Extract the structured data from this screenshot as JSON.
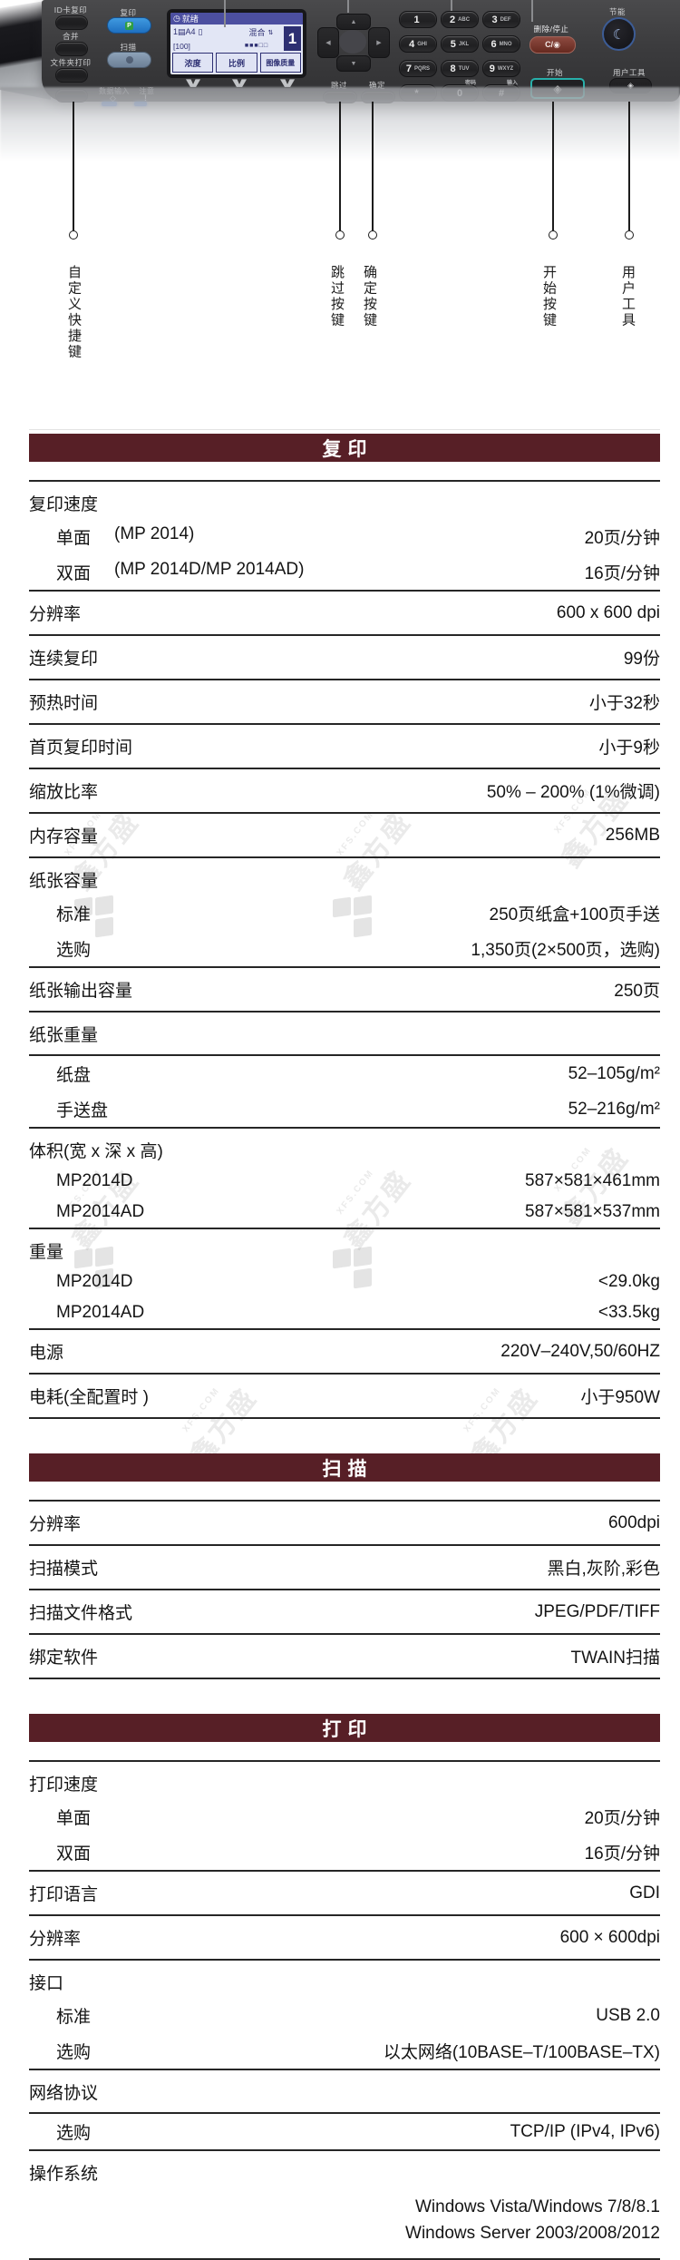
{
  "colors": {
    "section_bar": "#571f26",
    "copy_button_blue": "#1e6fc0",
    "start_teal": "#27b0aa",
    "clear_red": "#66291f"
  },
  "panel": {
    "shortcut_buttons": [
      "ID卡复印",
      "合并",
      "文件夹打印"
    ],
    "copy_label": "复印",
    "copy_key_icon": "P",
    "scan_label": "扫描",
    "data_in_label": "数据输入",
    "data_in_icon": "◇",
    "caution_label": "注意",
    "caution_icon": "!",
    "lcd": {
      "status_icon": "◷",
      "status": "就绪",
      "paper": "1▤A4",
      "paper_icon": "▯",
      "mode": "混合",
      "mode_icon": "⇅",
      "ratio": "[100]",
      "gauge": "■■■□□",
      "count": "1",
      "softkeys": [
        "浓度",
        "比例",
        "图像质量"
      ]
    },
    "skip_label": "跳过",
    "ok_label": "确定",
    "keypad": [
      {
        "key": "1",
        "sub": ""
      },
      {
        "key": "2",
        "sub": "ABC"
      },
      {
        "key": "3",
        "sub": "DEF"
      },
      {
        "key": "4",
        "sub": "GHI"
      },
      {
        "key": "5",
        "sub": "JKL"
      },
      {
        "key": "6",
        "sub": "MNO"
      },
      {
        "key": "7",
        "sub": "PQRS"
      },
      {
        "key": "8",
        "sub": "TUV"
      },
      {
        "key": "9",
        "sub": "WXYZ"
      },
      {
        "key": "*",
        "sub": ""
      },
      {
        "key": "0",
        "sub": "密码"
      },
      {
        "key": "#",
        "sub": "输入"
      }
    ],
    "clear_stop_label": "删除/停止",
    "clear_stop_key": "C/◉",
    "start_label": "开始",
    "start_icon": "◈",
    "energy_label": "节能",
    "energy_icon": "☾",
    "user_tools_label": "用户工具",
    "user_tools_icon": "◈"
  },
  "callouts": [
    "自定义快捷键",
    "跳过按键",
    "确定按键",
    "开始按键",
    "用户工具"
  ],
  "sections": [
    {
      "title": "复印",
      "rows": [
        {
          "label": "复印速度",
          "group": true
        },
        {
          "label": "单面",
          "note": "(MP 2014)",
          "value": "20页/分钟",
          "indent": true
        },
        {
          "label": "双面",
          "note": "(MP 2014D/MP 2014AD)",
          "value": "16页/分钟",
          "indent": true,
          "rule": true
        },
        {
          "label": "分辨率",
          "value": "600 x 600 dpi",
          "rule": true
        },
        {
          "label": "连续复印",
          "value": "99份",
          "rule": true
        },
        {
          "label": "预热时间",
          "value": "小于32秒",
          "rule": true
        },
        {
          "label": "首页复印时间",
          "value": "小于9秒",
          "rule": true
        },
        {
          "label": "缩放比率",
          "value": "50% – 200% (1%微调)",
          "rule": true
        },
        {
          "label": "内存容量",
          "value": "256MB",
          "rule": true
        },
        {
          "label": "纸张容量",
          "group": true
        },
        {
          "label": "标准",
          "value": "250页纸盒+100页手送",
          "indent": true
        },
        {
          "label": "选购",
          "value": "1,350页(2×500页，选购)",
          "indent": true,
          "rule": true
        },
        {
          "label": "纸张输出容量",
          "value": "250页",
          "rule": true
        },
        {
          "label": "纸张重量",
          "group": true,
          "rule": true
        },
        {
          "label": "纸盘",
          "value": "52–105g/m²",
          "indent": true
        },
        {
          "label": "手送盘",
          "value": "52–216g/m²",
          "indent": true,
          "rule": true
        },
        {
          "label": "体积(宽 x 深 x 高)",
          "group": true
        },
        {
          "label": "MP2014D",
          "value": "587×581×461mm",
          "indent": true
        },
        {
          "label": "MP2014AD",
          "value": "587×581×537mm",
          "indent": true,
          "rule": true
        },
        {
          "label": "重量",
          "group": true
        },
        {
          "label": "MP2014D",
          "value": "<29.0kg",
          "indent": true
        },
        {
          "label": "MP2014AD",
          "value": "<33.5kg",
          "indent": true,
          "rule": true
        },
        {
          "label": "电源",
          "value": "220V–240V,50/60HZ",
          "rule": true
        },
        {
          "label": "电耗(全配置时 )",
          "value": "小于950W",
          "rule": true
        }
      ]
    },
    {
      "title": "扫描",
      "rows": [
        {
          "label": "分辨率",
          "value": "600dpi",
          "rule": true
        },
        {
          "label": "扫描模式",
          "value": "黑白,灰阶,彩色",
          "rule": true
        },
        {
          "label": "扫描文件格式",
          "value": "JPEG/PDF/TIFF",
          "rule": true
        },
        {
          "label": "绑定软件",
          "value": "TWAIN扫描",
          "rule": true
        }
      ]
    },
    {
      "title": "打印",
      "rows": [
        {
          "label": "打印速度",
          "group": true
        },
        {
          "label": "单面",
          "value": "20页/分钟",
          "indent": true
        },
        {
          "label": "双面",
          "value": "16页/分钟",
          "indent": true,
          "rule": true
        },
        {
          "label": "打印语言",
          "value": "GDI",
          "rule": true
        },
        {
          "label": "分辨率",
          "value": "600 × 600dpi",
          "rule": true
        },
        {
          "label": "接口",
          "group": true
        },
        {
          "label": "标准",
          "value": "USB 2.0",
          "indent": true
        },
        {
          "label": "选购",
          "value": "以太网络(10BASE–T/100BASE–TX)",
          "indent": true,
          "rule": true
        },
        {
          "label": "网络协议",
          "group": true,
          "rule": true
        },
        {
          "label": "选购",
          "value": "TCP/IP (IPv4, IPv6)",
          "indent": true,
          "rule": true
        },
        {
          "label": "操作系统",
          "group": true
        },
        {
          "label": "",
          "value": "Windows Vista/Windows 7/8/8.1\nWindows Server 2003/2008/2012",
          "multiline": true,
          "rule": true
        }
      ]
    }
  ],
  "watermark": {
    "brand": "鑫方盛",
    "domain": "XFS.COM"
  }
}
